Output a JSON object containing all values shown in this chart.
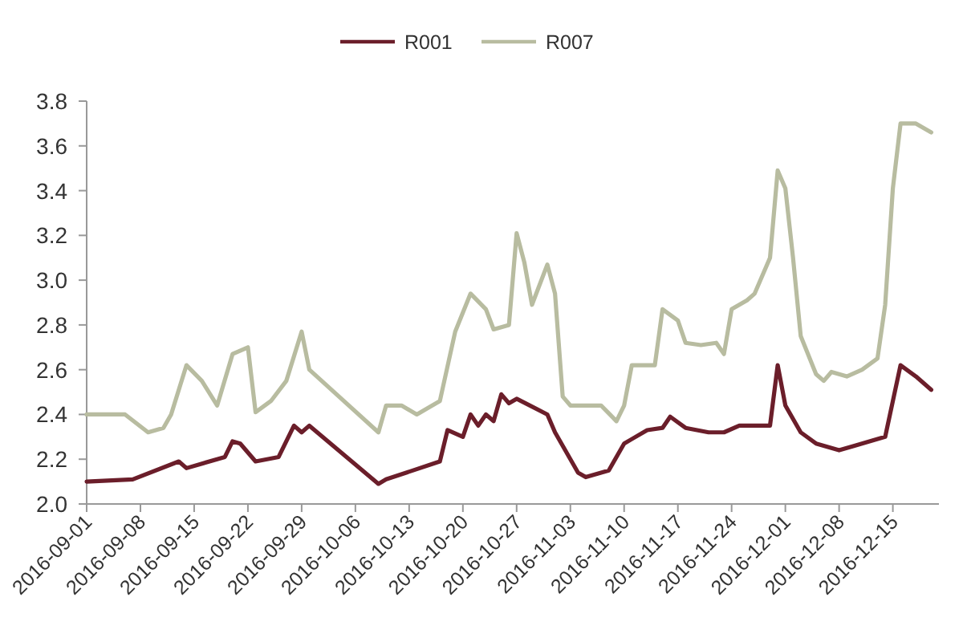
{
  "chart_data": {
    "type": "line",
    "legend": "top",
    "xlim": [
      "2016-09-01",
      "2016-12-21"
    ],
    "xticks": [
      "2016-09-01",
      "2016-09-08",
      "2016-09-15",
      "2016-09-22",
      "2016-09-29",
      "2016-10-06",
      "2016-10-13",
      "2016-10-20",
      "2016-10-27",
      "2016-11-03",
      "2016-11-10",
      "2016-11-17",
      "2016-11-24",
      "2016-12-01",
      "2016-12-08",
      "2016-12-15"
    ],
    "ylim": [
      2,
      3.8
    ],
    "yticks": [
      {
        "value": 2,
        "label": "2.0"
      },
      2.2,
      2.4,
      2.6,
      2.8,
      {
        "value": 3,
        "label": "3.0"
      },
      3.2,
      3.4,
      3.6,
      3.8
    ],
    "series": [
      {
        "name": "R001",
        "color": "#6b1e2a",
        "x": [
          "2016-09-01",
          "2016-09-07",
          "2016-09-13",
          "2016-09-14",
          "2016-09-19",
          "2016-09-20",
          "2016-09-21",
          "2016-09-23",
          "2016-09-26",
          "2016-09-28",
          "2016-09-29",
          "2016-09-30",
          "2016-10-09",
          "2016-10-10",
          "2016-10-17",
          "2016-10-18",
          "2016-10-20",
          "2016-10-21",
          "2016-10-22",
          "2016-10-23",
          "2016-10-24",
          "2016-10-25",
          "2016-10-26",
          "2016-10-27",
          "2016-10-31",
          "2016-11-01",
          "2016-11-04",
          "2016-11-05",
          "2016-11-08",
          "2016-11-10",
          "2016-11-11",
          "2016-11-13",
          "2016-11-15",
          "2016-11-16",
          "2016-11-18",
          "2016-11-21",
          "2016-11-23",
          "2016-11-25",
          "2016-11-29",
          "2016-11-30",
          "2016-12-01",
          "2016-12-03",
          "2016-12-05",
          "2016-12-08",
          "2016-12-10",
          "2016-12-14",
          "2016-12-15",
          "2016-12-16",
          "2016-12-18",
          "2016-12-20"
        ],
        "values": [
          2.1,
          2.11,
          2.19,
          2.16,
          2.21,
          2.28,
          2.27,
          2.19,
          2.21,
          2.35,
          2.32,
          2.35,
          2.09,
          2.11,
          2.19,
          2.33,
          2.3,
          2.4,
          2.35,
          2.4,
          2.37,
          2.49,
          2.45,
          2.47,
          2.4,
          2.32,
          2.14,
          2.12,
          2.15,
          2.27,
          2.29,
          2.33,
          2.34,
          2.39,
          2.34,
          2.32,
          2.32,
          2.35,
          2.35,
          2.62,
          2.44,
          2.32,
          2.27,
          2.24,
          2.26,
          2.3,
          2.46,
          2.62,
          2.57,
          2.51
        ]
      },
      {
        "name": "R007",
        "color": "#b8bca0",
        "x": [
          "2016-09-01",
          "2016-09-06",
          "2016-09-09",
          "2016-09-11",
          "2016-09-12",
          "2016-09-14",
          "2016-09-16",
          "2016-09-18",
          "2016-09-20",
          "2016-09-22",
          "2016-09-23",
          "2016-09-25",
          "2016-09-27",
          "2016-09-29",
          "2016-09-30",
          "2016-10-09",
          "2016-10-10",
          "2016-10-12",
          "2016-10-14",
          "2016-10-17",
          "2016-10-19",
          "2016-10-21",
          "2016-10-23",
          "2016-10-24",
          "2016-10-26",
          "2016-10-27",
          "2016-10-28",
          "2016-10-29",
          "2016-10-31",
          "2016-11-01",
          "2016-11-02",
          "2016-11-03",
          "2016-11-07",
          "2016-11-09",
          "2016-11-10",
          "2016-11-11",
          "2016-11-14",
          "2016-11-15",
          "2016-11-17",
          "2016-11-18",
          "2016-11-20",
          "2016-11-22",
          "2016-11-23",
          "2016-11-24",
          "2016-11-26",
          "2016-11-27",
          "2016-11-29",
          "2016-11-30",
          "2016-12-01",
          "2016-12-02",
          "2016-12-03",
          "2016-12-05",
          "2016-12-06",
          "2016-12-07",
          "2016-12-09",
          "2016-12-11",
          "2016-12-13",
          "2016-12-14",
          "2016-12-15",
          "2016-12-16",
          "2016-12-18",
          "2016-12-20"
        ],
        "values": [
          2.4,
          2.4,
          2.32,
          2.34,
          2.4,
          2.62,
          2.55,
          2.44,
          2.67,
          2.7,
          2.41,
          2.46,
          2.55,
          2.77,
          2.6,
          2.32,
          2.44,
          2.44,
          2.4,
          2.46,
          2.77,
          2.94,
          2.87,
          2.78,
          2.8,
          3.21,
          3.08,
          2.89,
          3.07,
          2.94,
          2.48,
          2.44,
          2.44,
          2.37,
          2.44,
          2.62,
          2.62,
          2.87,
          2.82,
          2.72,
          2.71,
          2.72,
          2.67,
          2.87,
          2.91,
          2.94,
          3.1,
          3.49,
          3.41,
          3.1,
          2.75,
          2.58,
          2.55,
          2.59,
          2.57,
          2.6,
          2.65,
          2.89,
          3.41,
          3.7,
          3.7,
          3.66
        ]
      }
    ]
  }
}
